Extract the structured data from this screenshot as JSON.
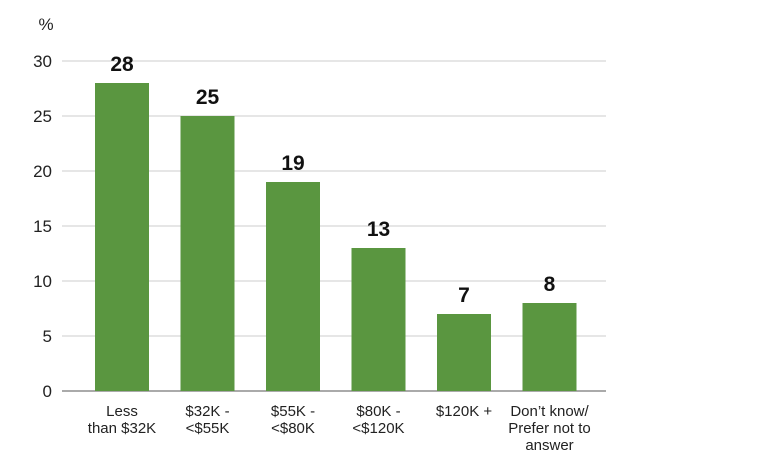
{
  "chart_data": {
    "type": "bar",
    "ylabel": "%",
    "ylim": [
      0,
      30
    ],
    "yticks": [
      "0",
      "5",
      "10",
      "15",
      "20",
      "25",
      "30"
    ],
    "grid": true,
    "legend": "none",
    "bar_color": "#5a9640",
    "categories": [
      [
        "Less",
        "than $32K"
      ],
      [
        "$32K -",
        "<$55K"
      ],
      [
        "$55K -",
        "<$80K"
      ],
      [
        "$80K -",
        "<$120K"
      ],
      [
        "$120K +"
      ],
      [
        "Don’t know/",
        "Prefer not to",
        "answer"
      ]
    ],
    "values": [
      28,
      25,
      19,
      13,
      7,
      8
    ]
  }
}
